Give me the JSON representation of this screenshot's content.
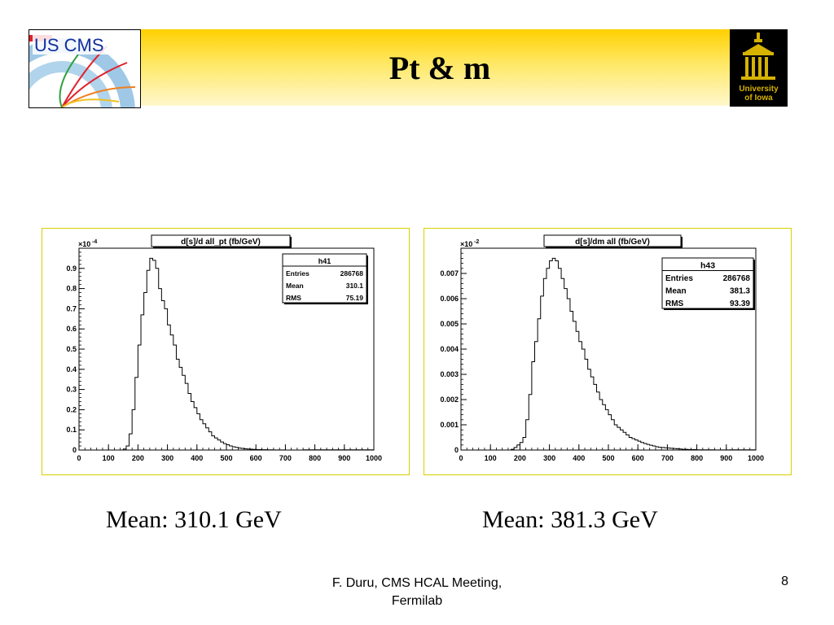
{
  "slide": {
    "title": "Pt & m",
    "captions": [
      "Mean: 310.1 GeV",
      "Mean: 381.3 GeV"
    ],
    "footer": [
      "F. Duru, CMS HCAL Meeting,",
      "Fermilab"
    ],
    "page_number": "8",
    "logo_left_text": "US CMS",
    "logo_right_text": [
      "University",
      "of Iowa"
    ],
    "colors": {
      "header": "#ffd000",
      "frame_border": "#d9d000",
      "logo_red": "#e0202a"
    }
  },
  "chart_data": [
    {
      "type": "histogram",
      "title": "d[s]/d all_pt    (fb/GeV)",
      "multiplier_label": "×10",
      "multiplier_exp": "-4",
      "xlim": [
        0,
        1000
      ],
      "ylim": [
        0,
        1.0
      ],
      "x_ticks": [
        0,
        100,
        200,
        300,
        400,
        500,
        600,
        700,
        800,
        900,
        1000
      ],
      "y_ticks": [
        0,
        0.1,
        0.2,
        0.3,
        0.4,
        0.5,
        0.6,
        0.7,
        0.8,
        0.9
      ],
      "y_tick_labels": [
        "0",
        "0.1",
        "0.2",
        "0.3",
        "0.4",
        "0.5",
        "0.6",
        "0.7",
        "0.8",
        "0.9"
      ],
      "stats": {
        "name": "h41",
        "rows": [
          [
            "Entries",
            "286768"
          ],
          [
            "Mean",
            "310.1"
          ],
          [
            "RMS",
            "75.19"
          ]
        ]
      },
      "bin_width": 10,
      "x": [
        150,
        160,
        170,
        180,
        190,
        200,
        210,
        220,
        230,
        240,
        250,
        260,
        270,
        280,
        290,
        300,
        310,
        320,
        330,
        340,
        350,
        360,
        370,
        380,
        390,
        400,
        410,
        420,
        430,
        440,
        450,
        460,
        470,
        480,
        490,
        500,
        510,
        520,
        530,
        540,
        550,
        560,
        570,
        580,
        590,
        600,
        610,
        620,
        630,
        640,
        650,
        660,
        670,
        680,
        690,
        700,
        710,
        720,
        730,
        740,
        750
      ],
      "values": [
        0.005,
        0.02,
        0.08,
        0.2,
        0.36,
        0.52,
        0.67,
        0.78,
        0.89,
        0.95,
        0.94,
        0.9,
        0.8,
        0.74,
        0.7,
        0.62,
        0.57,
        0.52,
        0.45,
        0.41,
        0.37,
        0.33,
        0.28,
        0.24,
        0.21,
        0.18,
        0.15,
        0.13,
        0.11,
        0.09,
        0.07,
        0.06,
        0.05,
        0.04,
        0.032,
        0.026,
        0.02,
        0.016,
        0.013,
        0.01,
        0.008,
        0.006,
        0.005,
        0.004,
        0.003,
        0.0025,
        0.002,
        0.0016,
        0.0013,
        0.001,
        0.0008,
        0.0006,
        0.0005,
        0.0004,
        0.0003,
        0.00025,
        0.0002,
        0.00015,
        0.0001,
        8e-05,
        5e-05
      ]
    },
    {
      "type": "histogram",
      "title": "d[s]/dm all      (fb/GeV)",
      "multiplier_label": "×10",
      "multiplier_exp": "-2",
      "xlim": [
        0,
        1000
      ],
      "ylim": [
        0,
        0.008
      ],
      "x_ticks": [
        0,
        100,
        200,
        300,
        400,
        500,
        600,
        700,
        800,
        900,
        1000
      ],
      "y_ticks": [
        0,
        0.001,
        0.002,
        0.003,
        0.004,
        0.005,
        0.006,
        0.007
      ],
      "y_tick_labels": [
        "0",
        "0.001",
        "0.002",
        "0.003",
        "0.004",
        "0.005",
        "0.006",
        "0.007"
      ],
      "stats": {
        "name": "h43",
        "rows": [
          [
            "Entries",
            "286768"
          ],
          [
            "Mean",
            "381.3"
          ],
          [
            "RMS",
            "93.39"
          ]
        ]
      },
      "bin_width": 10,
      "x": [
        170,
        180,
        190,
        200,
        210,
        220,
        230,
        240,
        250,
        260,
        270,
        280,
        290,
        300,
        310,
        320,
        330,
        340,
        350,
        360,
        370,
        380,
        390,
        400,
        410,
        420,
        430,
        440,
        450,
        460,
        470,
        480,
        490,
        500,
        510,
        520,
        530,
        540,
        550,
        560,
        570,
        580,
        590,
        600,
        610,
        620,
        630,
        640,
        650,
        660,
        670,
        680,
        690,
        700,
        710,
        720,
        730,
        740,
        750,
        760,
        770,
        780,
        790,
        800,
        810,
        820,
        830,
        840,
        850,
        860,
        870,
        880,
        890,
        900
      ],
      "values": [
        3e-05,
        0.0001,
        0.0002,
        0.0003,
        0.0005,
        0.0012,
        0.0022,
        0.0035,
        0.0043,
        0.0052,
        0.0061,
        0.0068,
        0.0072,
        0.0075,
        0.0076,
        0.0075,
        0.0072,
        0.0068,
        0.0064,
        0.006,
        0.0055,
        0.0051,
        0.0047,
        0.0043,
        0.004,
        0.0036,
        0.0032,
        0.0029,
        0.0026,
        0.0023,
        0.002,
        0.0018,
        0.0016,
        0.0014,
        0.0012,
        0.001,
        0.0009,
        0.0008,
        0.0007,
        0.0006,
        0.0005,
        0.00045,
        0.0004,
        0.00035,
        0.0003,
        0.00026,
        0.00022,
        0.00019,
        0.00016,
        0.00013,
        0.00011,
        0.0001,
        9e-05,
        8e-05,
        7e-05,
        6e-05,
        5e-05,
        4e-05,
        3e-05,
        3e-05,
        2e-05,
        2e-05,
        2e-05,
        1e-05,
        1e-05,
        1e-05,
        1e-05,
        1e-05,
        1e-05,
        5e-06,
        5e-06,
        5e-06,
        5e-06,
        5e-06
      ]
    }
  ]
}
